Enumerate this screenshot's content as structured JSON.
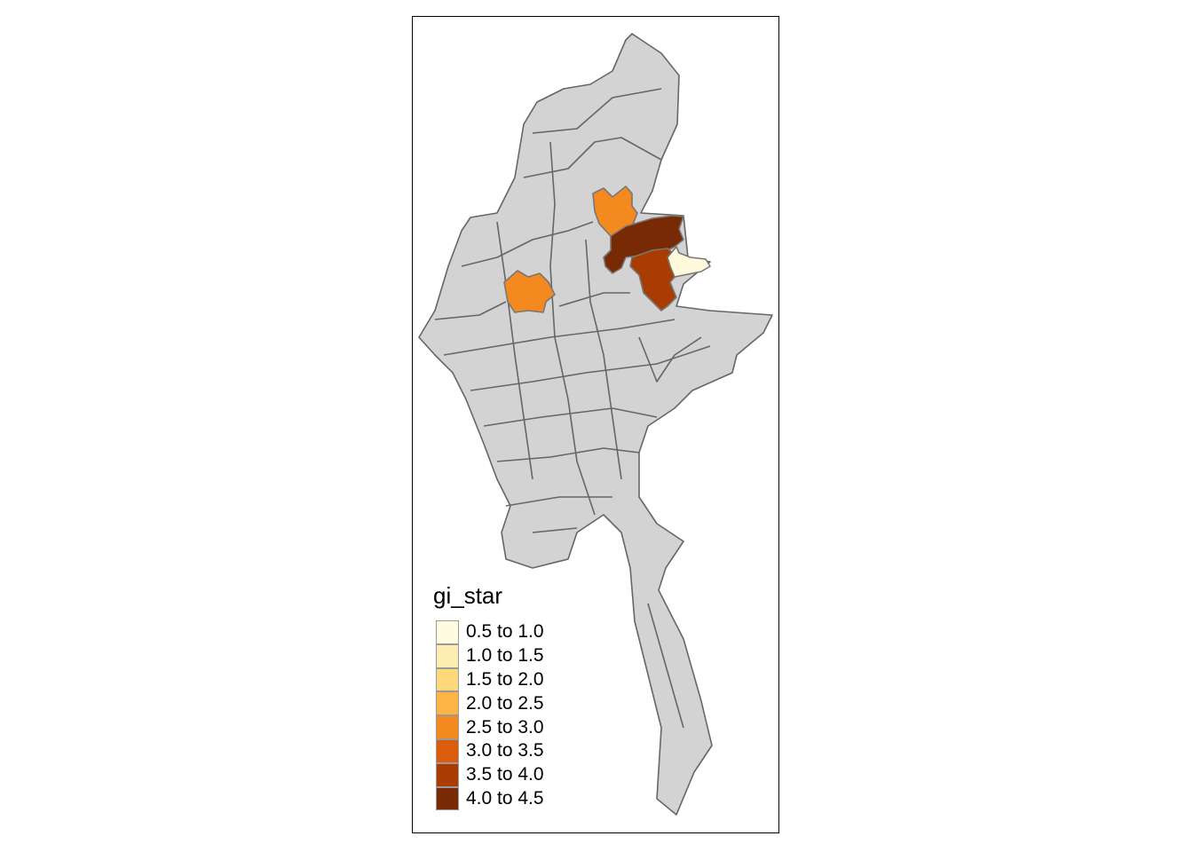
{
  "map": {
    "variable": "gi_star",
    "base_fill": "#d3d3d3",
    "border_color": "#666666",
    "highlighted_regions": [
      {
        "class": "2.5 to 3.0",
        "color": "#f4891f"
      },
      {
        "class": "2.5 to 3.0",
        "color": "#f4891f"
      },
      {
        "class": "4.0 to 4.5",
        "color": "#782a05"
      },
      {
        "class": "3.5 to 4.0",
        "color": "#a83c02"
      },
      {
        "class": "0.5 to 1.0",
        "color": "#fff9dc"
      }
    ]
  },
  "legend": {
    "title": "gi_star",
    "items": [
      {
        "label": "0.5 to 1.0",
        "color": "#fffbe0"
      },
      {
        "label": "1.0 to 1.5",
        "color": "#feedb0"
      },
      {
        "label": "1.5 to 2.0",
        "color": "#fed97c"
      },
      {
        "label": "2.0 to 2.5",
        "color": "#feb444"
      },
      {
        "label": "2.5 to 3.0",
        "color": "#f4891f"
      },
      {
        "label": "3.0 to 3.5",
        "color": "#db5c0b"
      },
      {
        "label": "3.5 to 4.0",
        "color": "#a83c02"
      },
      {
        "label": "4.0 to 4.5",
        "color": "#782a05"
      }
    ]
  }
}
